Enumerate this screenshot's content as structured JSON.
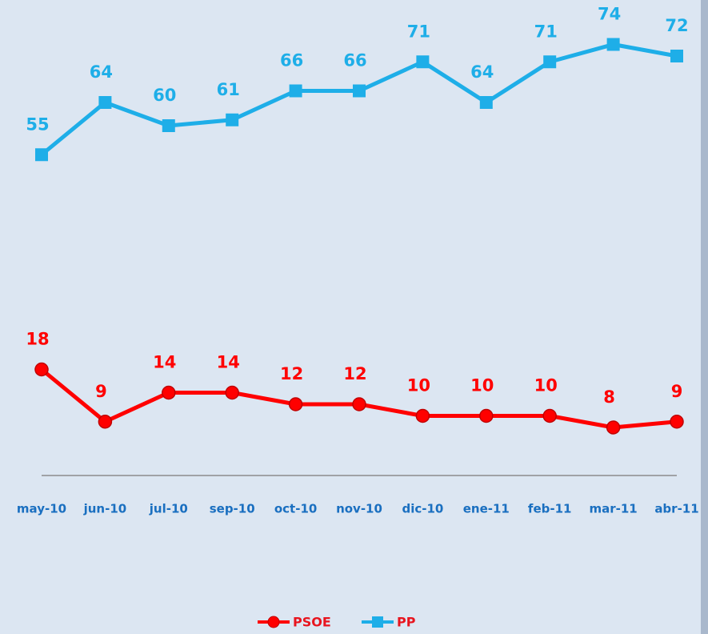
{
  "chart_data": {
    "type": "line",
    "categories": [
      "may-10",
      "jun-10",
      "jul-10",
      "sep-10",
      "oct-10",
      "nov-10",
      "dic-10",
      "ene-11",
      "feb-11",
      "mar-11",
      "abr-11"
    ],
    "series": [
      {
        "name": "PSOE",
        "color": "#ff0000",
        "values": [
          18,
          9,
          14,
          14,
          12,
          12,
          10,
          10,
          10,
          8,
          9
        ]
      },
      {
        "name": "PP",
        "color": "#1eaee8",
        "values": [
          55,
          64,
          60,
          61,
          66,
          66,
          71,
          64,
          71,
          74,
          72
        ]
      }
    ],
    "ylim": [
      0,
      80
    ],
    "legend": "bottom"
  }
}
